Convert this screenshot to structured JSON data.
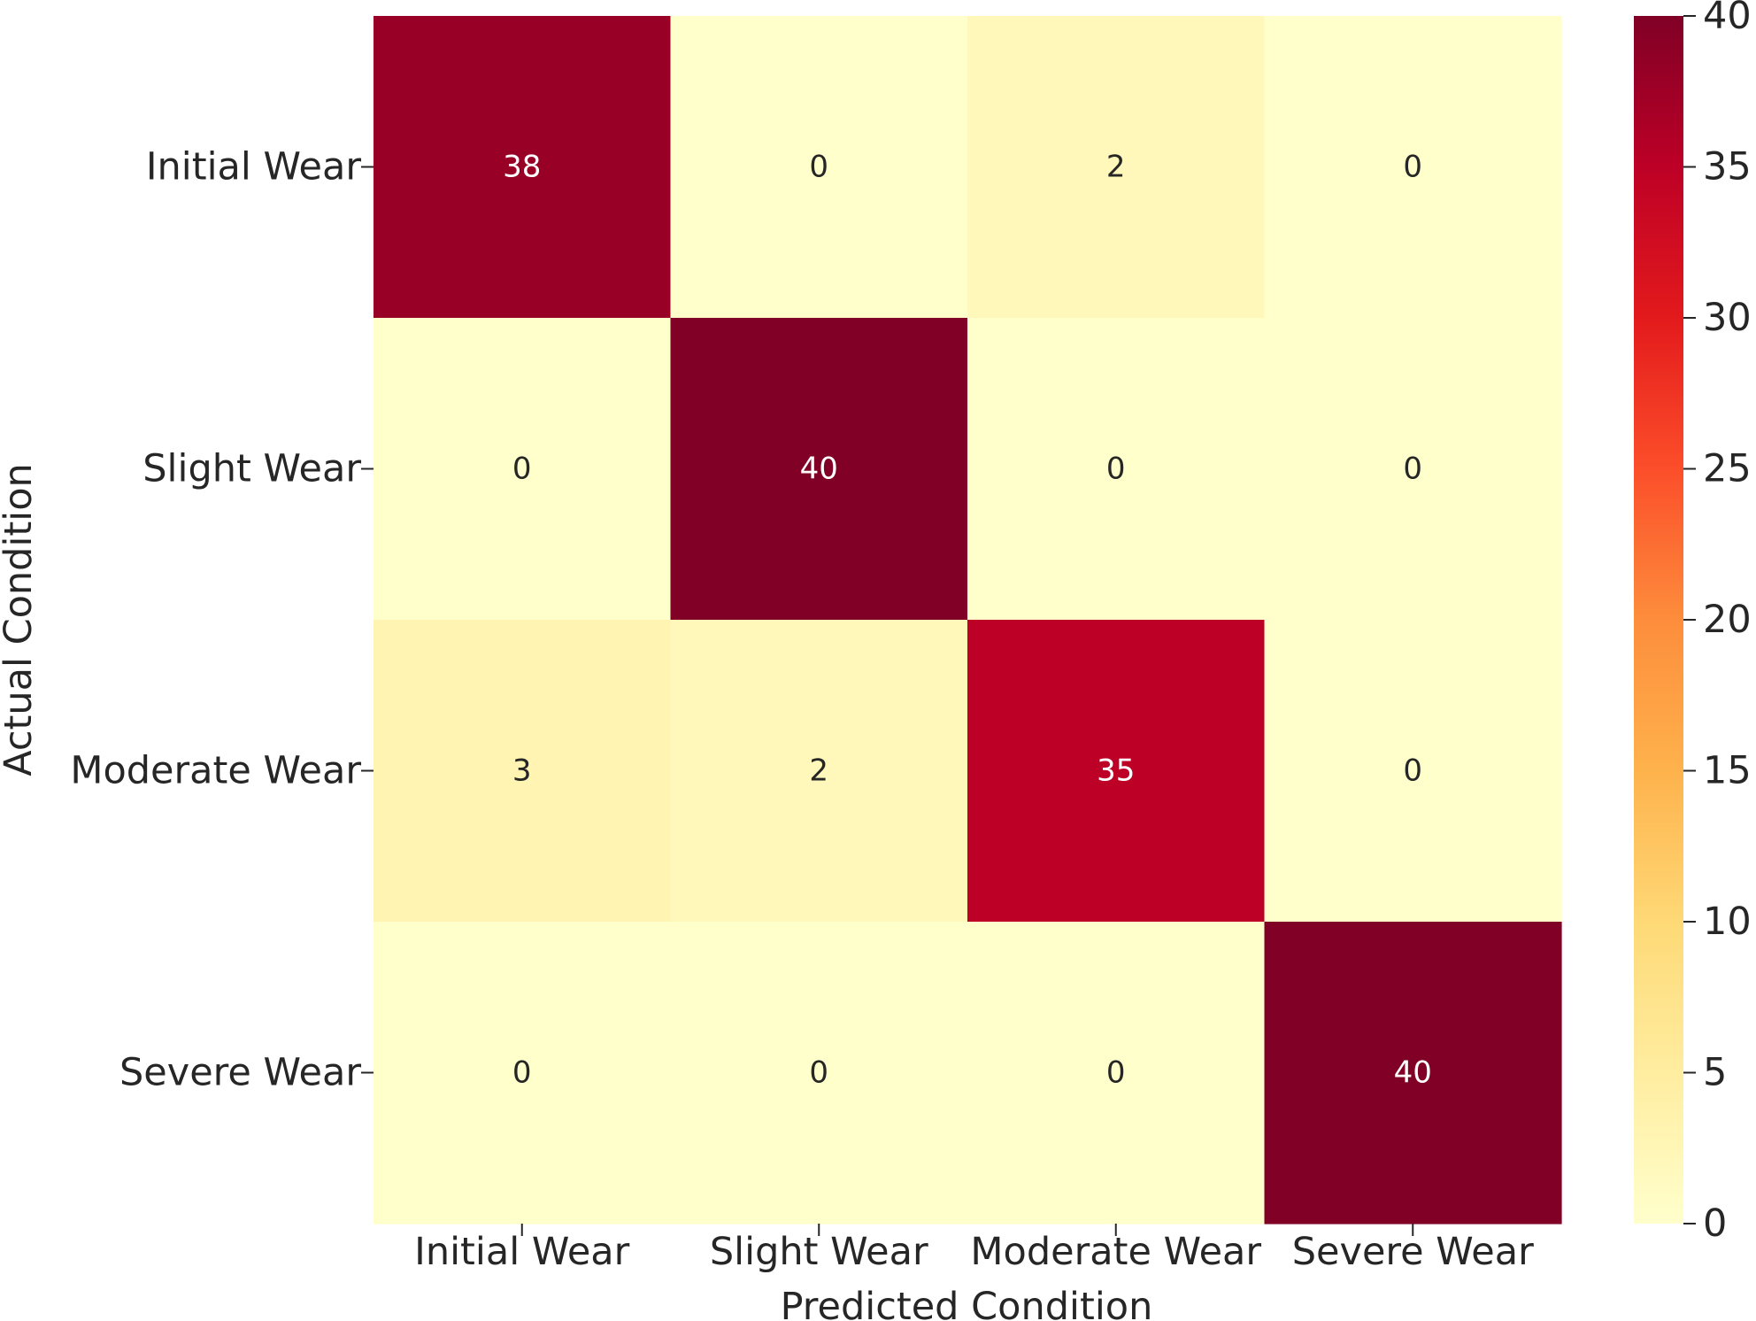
{
  "chart_data": {
    "type": "heatmap",
    "xlabel": "Predicted Condition",
    "ylabel": "Actual Condition",
    "x_categories": [
      "Initial Wear",
      "Slight Wear",
      "Moderate Wear",
      "Severe Wear"
    ],
    "y_categories": [
      "Initial Wear",
      "Slight Wear",
      "Moderate Wear",
      "Severe Wear"
    ],
    "values": [
      [
        38,
        0,
        2,
        0
      ],
      [
        0,
        40,
        0,
        0
      ],
      [
        3,
        2,
        35,
        0
      ],
      [
        0,
        0,
        0,
        40
      ]
    ],
    "annotations": true,
    "colormap": "YlOrRd",
    "colorbar": {
      "min": 0,
      "max": 40,
      "ticks": [
        "0",
        "5",
        "10",
        "15",
        "20",
        "25",
        "30",
        "35",
        "40"
      ]
    },
    "colors": {
      "low": "#ffffcc",
      "high": "#800026",
      "text_dark": "#262626",
      "text_light": "#ffffff"
    }
  }
}
